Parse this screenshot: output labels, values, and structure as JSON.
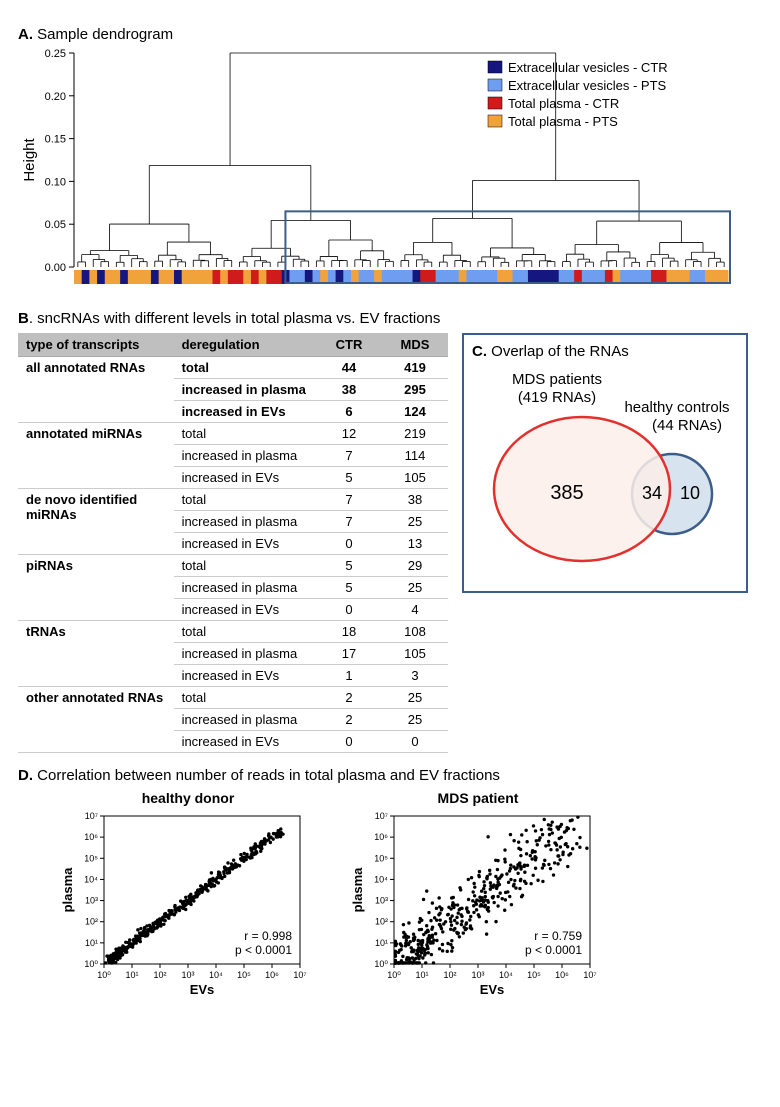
{
  "panelA": {
    "title_prefix": "A.",
    "title": "Sample dendrogram",
    "ylabel": "Height",
    "yticks": [
      "0.00",
      "0.05",
      "0.10",
      "0.15",
      "0.20",
      "0.25"
    ],
    "legend": [
      {
        "label": "Extracellular vesicles - CTR",
        "color": "#16167f"
      },
      {
        "label": "Extracellular vesicles - PTS",
        "color": "#6f9ef0"
      },
      {
        "label": "Total plasma - CTR",
        "color": "#cf1b1b"
      },
      {
        "label": "Total plasma - PTS",
        "color": "#f2a23b"
      }
    ],
    "highlight_box_color": "#3b5d8a",
    "sample_bar": [
      3,
      0,
      3,
      0,
      3,
      3,
      0,
      3,
      3,
      3,
      0,
      3,
      3,
      0,
      3,
      3,
      3,
      3,
      2,
      3,
      2,
      2,
      3,
      2,
      3,
      2,
      2,
      0,
      1,
      1,
      0,
      1,
      3,
      1,
      0,
      1,
      3,
      1,
      1,
      3,
      1,
      1,
      1,
      1,
      0,
      2,
      2,
      1,
      1,
      1,
      3,
      1,
      1,
      1,
      1,
      3,
      3,
      1,
      1,
      0,
      0,
      0,
      0,
      1,
      1,
      2,
      1,
      1,
      1,
      2,
      3,
      1,
      1,
      1,
      1,
      2,
      2,
      3,
      3,
      3,
      1,
      1,
      3,
      3,
      3
    ]
  },
  "panelB": {
    "title_prefix": "B",
    "title": ". sncRNAs with different levels in total plasma vs. EV fractions",
    "headers": [
      "type of transcripts",
      "deregulation",
      "CTR",
      "MDS"
    ],
    "groups": [
      {
        "category": "all annotated RNAs",
        "bold": true,
        "rows": [
          {
            "d": "total",
            "c": 44,
            "m": 419
          },
          {
            "d": "increased in plasma",
            "c": 38,
            "m": 295
          },
          {
            "d": "increased in EVs",
            "c": 6,
            "m": 124
          }
        ]
      },
      {
        "category": "annotated miRNAs",
        "bold": false,
        "rows": [
          {
            "d": "total",
            "c": 12,
            "m": 219
          },
          {
            "d": "increased in plasma",
            "c": 7,
            "m": 114
          },
          {
            "d": "increased in EVs",
            "c": 5,
            "m": 105
          }
        ]
      },
      {
        "category": "de novo identified\nmiRNAs",
        "bold": false,
        "rows": [
          {
            "d": "total",
            "c": 7,
            "m": 38
          },
          {
            "d": "increased in plasma",
            "c": 7,
            "m": 25
          },
          {
            "d": "increased in EVs",
            "c": 0,
            "m": 13
          }
        ]
      },
      {
        "category": "piRNAs",
        "bold": false,
        "rows": [
          {
            "d": "total",
            "c": 5,
            "m": 29
          },
          {
            "d": "increased in plasma",
            "c": 5,
            "m": 25
          },
          {
            "d": "increased in EVs",
            "c": 0,
            "m": 4
          }
        ]
      },
      {
        "category": "tRNAs",
        "bold": false,
        "rows": [
          {
            "d": "total",
            "c": 18,
            "m": 108
          },
          {
            "d": "increased in plasma",
            "c": 17,
            "m": 105
          },
          {
            "d": "increased in EVs",
            "c": 1,
            "m": 3
          }
        ]
      },
      {
        "category": "other annotated RNAs",
        "bold": false,
        "rows": [
          {
            "d": "total",
            "c": 2,
            "m": 25
          },
          {
            "d": "increased in plasma",
            "c": 2,
            "m": 25
          },
          {
            "d": "increased in EVs",
            "c": 0,
            "m": 0
          }
        ]
      }
    ]
  },
  "panelC": {
    "title_prefix": "C.",
    "title": "Overlap of the RNAs",
    "left_label1": "MDS patients",
    "left_label2": "(419 RNAs)",
    "right_label1": "healthy controls",
    "right_label2": "(44 RNAs)",
    "left_only": "385",
    "overlap": "34",
    "right_only": "10",
    "left_circle_color": "#e2312d",
    "left_fill": "#fceee9",
    "right_circle_color": "#3b5d8a",
    "right_fill": "#d7e4f0"
  },
  "panelD": {
    "title_prefix": "D.",
    "title": "Correlation between number of reads in total plasma and EV fractions",
    "xlabel": "EVs",
    "ylabel": "plasma",
    "ticks": [
      "10⁰",
      "10¹",
      "10²",
      "10³",
      "10⁴",
      "10⁵",
      "10⁶",
      "10⁷"
    ],
    "plots": [
      {
        "subtitle": "healthy donor",
        "r": "r = 0.998",
        "p": "p < 0.0001"
      },
      {
        "subtitle": "MDS patient",
        "r": "r = 0.759",
        "p": "p < 0.0001"
      }
    ],
    "point_color": "#000000",
    "axis_color": "#000000"
  }
}
